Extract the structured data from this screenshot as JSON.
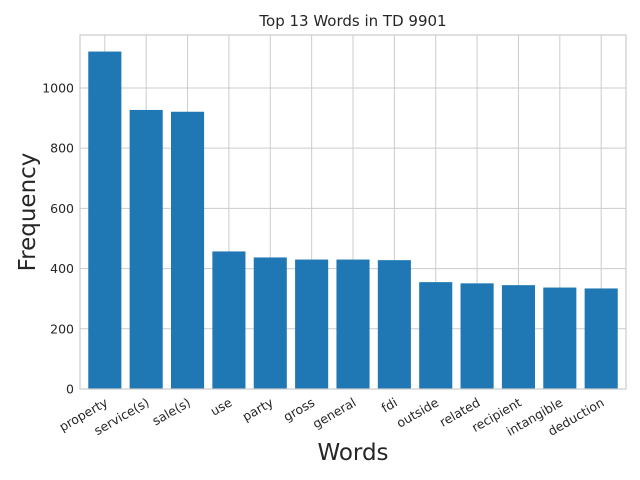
{
  "chart_data": {
    "type": "bar",
    "title": "Top 13 Words in TD 9901",
    "xlabel": "Words",
    "ylabel": "Frequency",
    "categories": [
      "property",
      "service(s)",
      "sale(s)",
      "use",
      "party",
      "gross",
      "general",
      "fdi",
      "outside",
      "related",
      "recipient",
      "intangible",
      "deduction"
    ],
    "values": [
      1121,
      927,
      921,
      457,
      437,
      430,
      430,
      428,
      355,
      351,
      345,
      337,
      334
    ],
    "ylim": [
      0,
      1176
    ],
    "yticks": [
      0,
      200,
      400,
      600,
      800,
      1000
    ],
    "bar_color": "#1f77b4",
    "grid": true,
    "x_tick_rotation": 30
  }
}
